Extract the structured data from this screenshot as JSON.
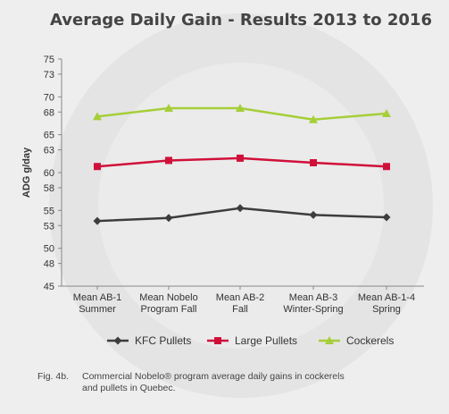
{
  "chart_data": {
    "type": "line",
    "title": "Average Daily Gain - Results 2013 to 2016",
    "ylabel": "ADG g/day",
    "xlabel": "",
    "categories": [
      [
        "Mean AB-1",
        "Summer"
      ],
      [
        "Mean Nobelo",
        "Program Fall"
      ],
      [
        "Mean AB-2",
        "Fall"
      ],
      [
        "Mean AB-3",
        "Winter-Spring"
      ],
      [
        "Mean AB-1-4",
        "Spring"
      ]
    ],
    "yticks": [
      45,
      48,
      50,
      53,
      55,
      58,
      60,
      63,
      65,
      68,
      70,
      73,
      75
    ],
    "ylim": [
      45,
      75
    ],
    "grid": false,
    "legend_position": "bottom",
    "series": [
      {
        "name": "KFC Pullets",
        "values": [
          53.6,
          54.0,
          55.3,
          54.4,
          54.1
        ],
        "color": "#3d3d3d",
        "marker": "diamond"
      },
      {
        "name": "Large Pullets",
        "values": [
          60.8,
          61.6,
          61.9,
          61.3,
          60.8
        ],
        "color": "#d0103a",
        "marker": "square"
      },
      {
        "name": "Cockerels",
        "values": [
          67.4,
          68.5,
          68.5,
          67.0,
          67.8
        ],
        "color": "#a6ce39",
        "marker": "triangle"
      }
    ]
  },
  "caption": {
    "number": "Fig. 4b.",
    "line1": "Commercial Nobelo® program average daily gains in cockerels",
    "line2": "and pullets in Quebec."
  }
}
